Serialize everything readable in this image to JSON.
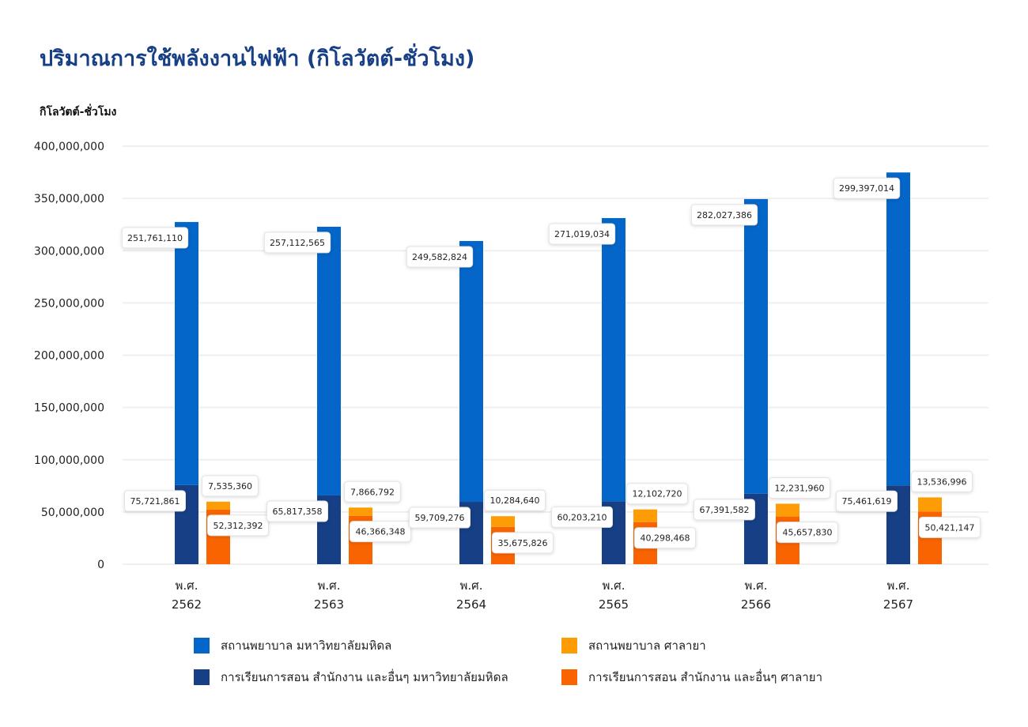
{
  "chart_data": {
    "type": "bar",
    "stacked": true,
    "title": "ปริมาณการใช้พลังงานไฟฟ้า (กิโลวัตต์-ชั่วโมง)",
    "ylabel": "กิโลวัตต์-ชั่วโมง",
    "xlabel": "",
    "ylim": [
      0,
      400000000
    ],
    "yticks": [
      "0",
      "50,000,000",
      "100,000,000",
      "150,000,000",
      "200,000,000",
      "250,000,000",
      "300,000,000",
      "350,000,000",
      "400,000,000"
    ],
    "yticks_values": [
      0,
      50000000,
      100000000,
      150000000,
      200000000,
      250000000,
      300000000,
      350000000,
      400000000
    ],
    "categories": [
      [
        "พ.ศ.",
        "2562"
      ],
      [
        "พ.ศ.",
        "2563"
      ],
      [
        "พ.ศ.",
        "2564"
      ],
      [
        "พ.ศ.",
        "2565"
      ],
      [
        "พ.ศ.",
        "2566"
      ],
      [
        "พ.ศ.",
        "2567"
      ]
    ],
    "grid": true,
    "legend_position": "bottom",
    "series": [
      {
        "name": "การเรียนการสอน สำนักงาน และอื่นๆ มหาวิทยาลัยมหิดล",
        "stack": "mahidol",
        "color": "#163f85",
        "values": [
          75721861,
          65817358,
          59709276,
          60203210,
          67391582,
          75461619
        ],
        "labels": [
          "75,721,861",
          "65,817,358",
          "59,709,276",
          "60,203,210",
          "67,391,582",
          "75,461,619"
        ]
      },
      {
        "name": "สถานพยาบาล มหาวิทยาลัยมหิดล",
        "stack": "mahidol",
        "color": "#0466c8",
        "values": [
          251761110,
          257112565,
          249582824,
          271019034,
          282027386,
          299397014
        ],
        "labels": [
          "251,761,110",
          "257,112,565",
          "249,582,824",
          "271,019,034",
          "282,027,386",
          "299,397,014"
        ]
      },
      {
        "name": "การเรียนการสอน สำนักงาน และอื่นๆ ศาลายา",
        "stack": "salaya",
        "color": "#fa6400",
        "values": [
          52312392,
          46366348,
          35675826,
          40298468,
          45657830,
          50421147
        ],
        "labels": [
          "52,312,392",
          "46,366,348",
          "35,675,826",
          "40,298,468",
          "45,657,830",
          "50,421,147"
        ]
      },
      {
        "name": "สถานพยาบาล ศาลายา",
        "stack": "salaya",
        "color": "#fd9c04",
        "values": [
          7535360,
          7866792,
          10284640,
          12102720,
          12231960,
          13536996
        ],
        "labels": [
          "7,535,360",
          "7,866,792",
          "10,284,640",
          "12,102,720",
          "12,231,960",
          "13,536,996"
        ]
      }
    ],
    "legend_order": [
      1,
      3,
      0,
      2
    ]
  }
}
